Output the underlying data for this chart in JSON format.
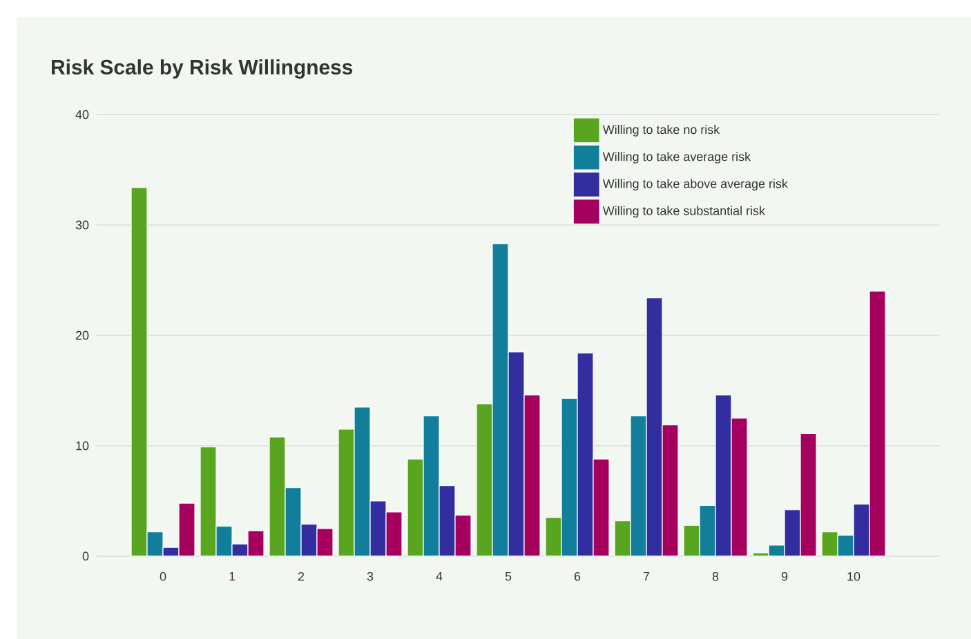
{
  "chart_data": {
    "type": "bar",
    "title": "Risk Scale by Risk Willingness",
    "categories": [
      "0",
      "1",
      "2",
      "3",
      "4",
      "5",
      "6",
      "7",
      "8",
      "9",
      "10"
    ],
    "series": [
      {
        "name": "Willing to take no risk",
        "color": "#5aa520",
        "values": [
          33.4,
          9.9,
          10.8,
          11.5,
          8.8,
          13.8,
          3.5,
          3.2,
          2.8,
          0.3,
          2.2
        ]
      },
      {
        "name": "Willing to take average risk",
        "color": "#117f9b",
        "values": [
          2.2,
          2.7,
          6.2,
          13.5,
          12.7,
          28.3,
          14.3,
          12.7,
          4.6,
          1.0,
          1.9
        ]
      },
      {
        "name": "Willing to take above average risk",
        "color": "#332ea0",
        "values": [
          0.8,
          1.1,
          2.9,
          5.0,
          6.4,
          18.5,
          18.4,
          23.4,
          14.6,
          4.2,
          4.7
        ]
      },
      {
        "name": "Willing to take substantial risk",
        "color": "#a6005e",
        "values": [
          4.8,
          2.3,
          2.5,
          4.0,
          3.7,
          14.6,
          8.8,
          11.9,
          12.5,
          11.1,
          24.0
        ]
      }
    ],
    "ylim": [
      0,
      40
    ],
    "yticks": [
      0,
      10,
      20,
      30,
      40
    ],
    "grid": "y",
    "legend": "top right"
  }
}
